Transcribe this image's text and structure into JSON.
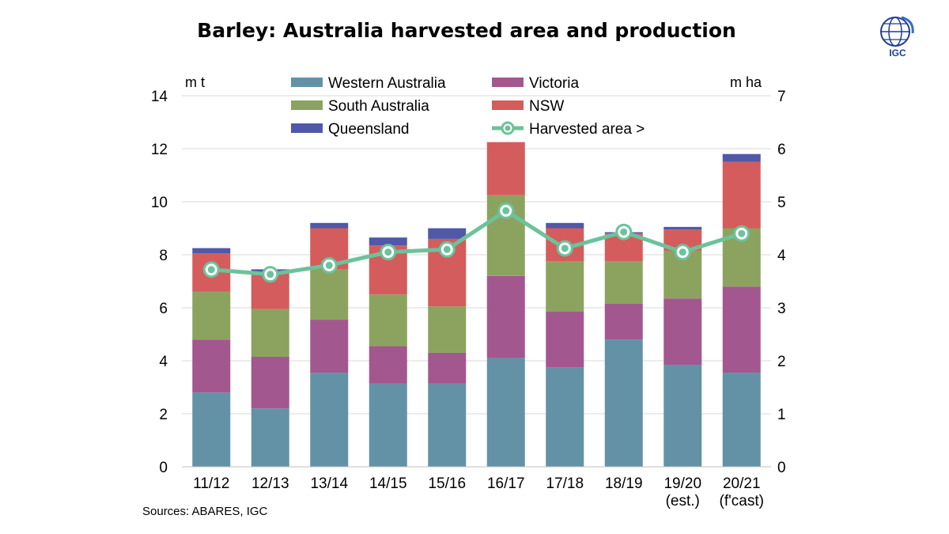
{
  "title": "Barley: Australia harvested area and production",
  "logo": {
    "text": "IGC",
    "icon": "globe-icon",
    "color": "#1f3f8f"
  },
  "source": "Sources: ABARES, IGC",
  "chart_data": {
    "type": "bar",
    "stacked": true,
    "title": "Barley: Australia harvested area and production",
    "categories": [
      [
        "11/12"
      ],
      [
        "12/13"
      ],
      [
        "13/14"
      ],
      [
        "14/15"
      ],
      [
        "15/16"
      ],
      [
        "16/17"
      ],
      [
        "17/18"
      ],
      [
        "18/19"
      ],
      [
        "19/20",
        "(est.)"
      ],
      [
        "20/21",
        "(f'cast)"
      ]
    ],
    "ylabel_left": "m t",
    "ylabel_right": "m ha",
    "ylim_left": [
      0,
      14
    ],
    "ylim_right": [
      0,
      7
    ],
    "yticks_left": [
      "0",
      "2",
      "4",
      "6",
      "8",
      "10",
      "12",
      "14"
    ],
    "yticks_right": [
      "0",
      "1",
      "2",
      "3",
      "4",
      "5",
      "6",
      "7"
    ],
    "grid": true,
    "legend_position": "top",
    "series": [
      {
        "name": "Western Australia",
        "color": "#6392a6",
        "values": [
          2.8,
          2.2,
          3.55,
          3.15,
          3.15,
          4.1,
          3.75,
          4.8,
          3.85,
          3.55
        ]
      },
      {
        "name": "Victoria",
        "color": "#a3578f",
        "values": [
          2.0,
          1.95,
          2.0,
          1.4,
          1.15,
          3.1,
          2.1,
          1.35,
          2.5,
          3.25
        ]
      },
      {
        "name": "South Australia",
        "color": "#8ca35f",
        "values": [
          1.8,
          1.8,
          1.9,
          1.95,
          1.75,
          3.05,
          1.9,
          1.6,
          1.8,
          2.2
        ]
      },
      {
        "name": "NSW",
        "color": "#d55c5c",
        "values": [
          1.45,
          1.35,
          1.55,
          1.85,
          2.55,
          2.0,
          1.25,
          1.05,
          0.8,
          2.5
        ]
      },
      {
        "name": "Queensland",
        "color": "#5058a8",
        "values": [
          0.2,
          0.15,
          0.2,
          0.3,
          0.4,
          0.0,
          0.2,
          0.05,
          0.1,
          0.3
        ]
      }
    ],
    "line": {
      "name": "Harvested area >",
      "axis": "right",
      "color": "#6cc29a",
      "values": [
        3.72,
        3.63,
        3.8,
        4.05,
        4.1,
        4.83,
        4.12,
        4.43,
        4.05,
        4.4
      ]
    },
    "legend": [
      {
        "label": "Western Australia",
        "type": "bar",
        "color": "#6392a6"
      },
      {
        "label": "Victoria",
        "type": "bar",
        "color": "#a3578f"
      },
      {
        "label": "South Australia",
        "type": "bar",
        "color": "#8ca35f"
      },
      {
        "label": "NSW",
        "type": "bar",
        "color": "#d55c5c"
      },
      {
        "label": "Queensland",
        "type": "bar",
        "color": "#5058a8"
      },
      {
        "label": "Harvested area >",
        "type": "line",
        "color": "#6cc29a"
      }
    ]
  }
}
